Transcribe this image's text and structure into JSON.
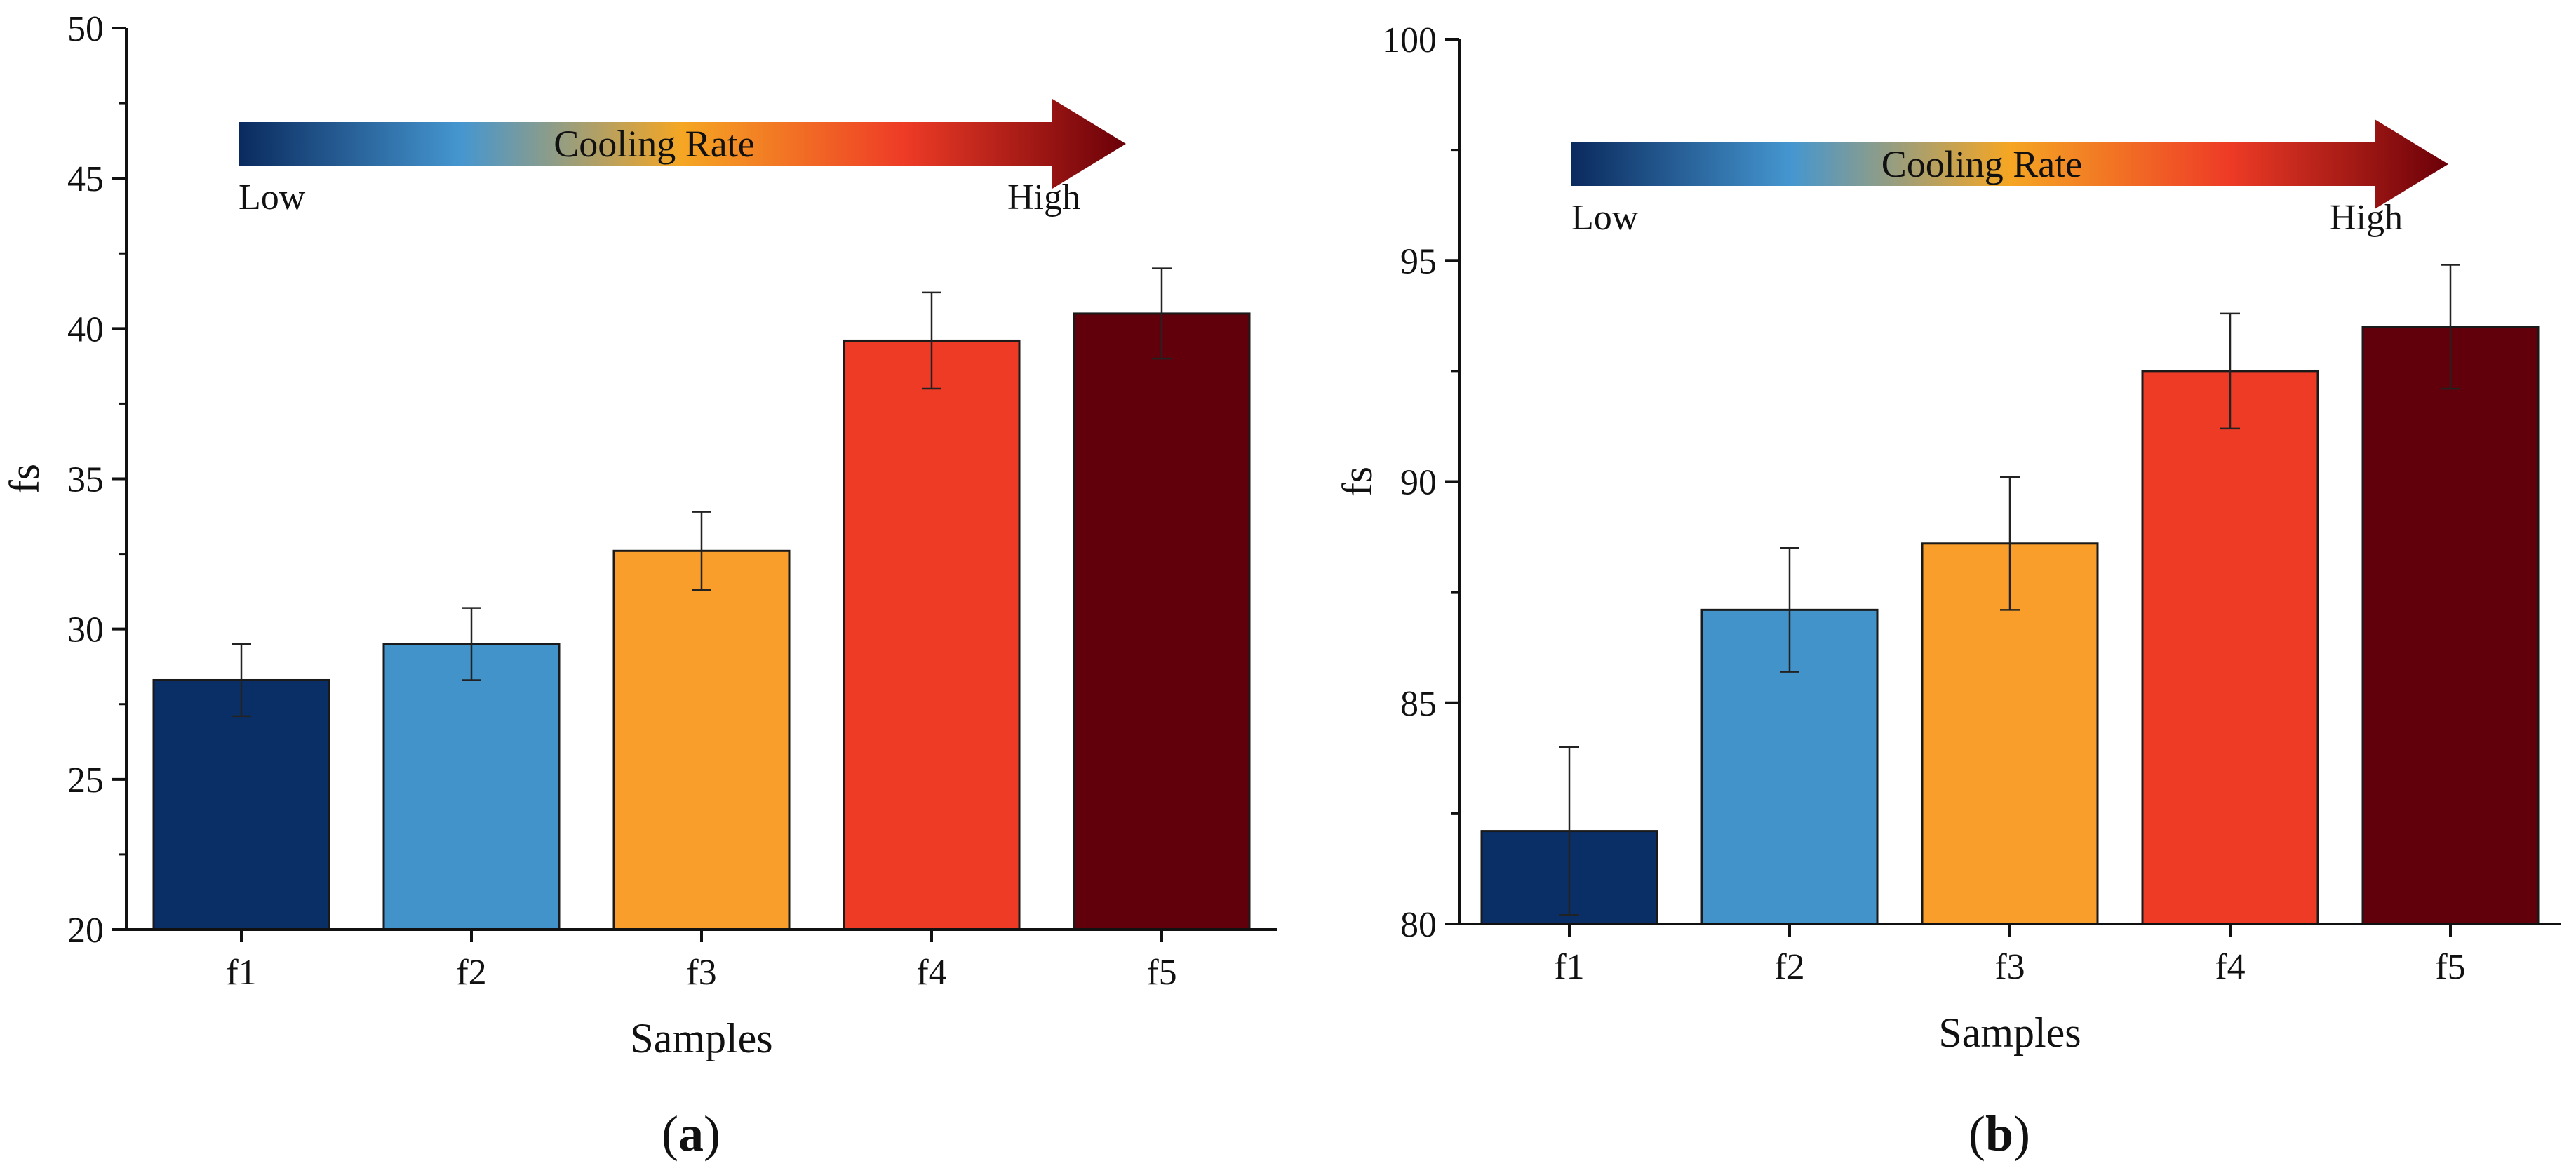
{
  "figure": {
    "panels": [
      {
        "label_open": "(",
        "label_letter": "a",
        "label_close": ")"
      },
      {
        "label_open": "(",
        "label_letter": "b",
        "label_close": ")"
      }
    ],
    "arrow": {
      "title": "Cooling Rate",
      "low": "Low",
      "high": "High",
      "gradient": [
        "#0a2a5e",
        "#4596d0",
        "#f5a623",
        "#ee3b26",
        "#6a0008"
      ]
    }
  },
  "colors": {
    "bars": [
      "#0a2f66",
      "#4193c9",
      "#f99e2b",
      "#ee3b26",
      "#61000a"
    ],
    "axis": "#111111",
    "bar_stroke": "#1a1a1a"
  },
  "chart_data": [
    {
      "type": "bar",
      "categories": [
        "f1",
        "f2",
        "f3",
        "f4",
        "f5"
      ],
      "values": [
        28.3,
        29.5,
        32.6,
        39.6,
        40.5
      ],
      "errors": [
        1.2,
        1.2,
        1.3,
        1.6,
        1.5
      ],
      "xlabel": "Samples",
      "ylabel": "fs",
      "ylim": [
        20,
        50
      ],
      "yticks": [
        20,
        25,
        30,
        35,
        40,
        45,
        50
      ],
      "grid": false
    },
    {
      "type": "bar",
      "categories": [
        "f1",
        "f2",
        "f3",
        "f4",
        "f5"
      ],
      "values": [
        82.1,
        87.1,
        88.6,
        92.5,
        93.5
      ],
      "errors": [
        1.9,
        1.4,
        1.5,
        1.3,
        1.4
      ],
      "xlabel": "Samples",
      "ylabel": "fs",
      "ylim": [
        80,
        100
      ],
      "yticks": [
        80,
        85,
        90,
        95,
        100
      ],
      "grid": false
    }
  ]
}
